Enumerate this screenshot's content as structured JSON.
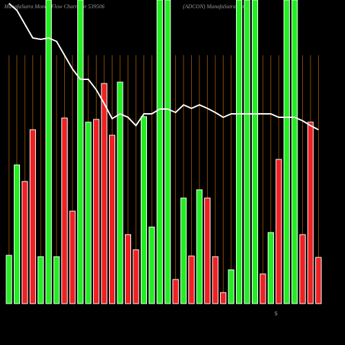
{
  "chart_data": {
    "type": "bar",
    "title": "MunafaSutra Money Flow Charts for 539506",
    "subtitle": "(ADCON) MunafaSutra.com",
    "annotation": "$",
    "ylim": [
      0,
      440
    ],
    "values": [
      70,
      201,
      177,
      252,
      68,
      440,
      68,
      269,
      134,
      440,
      263,
      267,
      319,
      244,
      321,
      100,
      78,
      271,
      111,
      440,
      440,
      35,
      153,
      69,
      165,
      153,
      68,
      16,
      49,
      440,
      440,
      440,
      43,
      103,
      209,
      440,
      440,
      100,
      263,
      67
    ],
    "colors": [
      "#22ee22",
      "#22ee22",
      "#ee2222",
      "#ee2222",
      "#22ee22",
      "#22ee22",
      "#22ee22",
      "#ee2222",
      "#ee2222",
      "#22ee22",
      "#22ee22",
      "#ee2222",
      "#ee2222",
      "#ee2222",
      "#22ee22",
      "#ee2222",
      "#ee2222",
      "#22ee22",
      "#22ee22",
      "#22ee22",
      "#22ee22",
      "#ee2222",
      "#22ee22",
      "#ee2222",
      "#22ee22",
      "#ee2222",
      "#ee2222",
      "#ee2222",
      "#22ee22",
      "#22ee22",
      "#22ee22",
      "#22ee22",
      "#ee2222",
      "#22ee22",
      "#ee2222",
      "#22ee22",
      "#22ee22",
      "#ee2222",
      "#ee2222",
      "#ee2222"
    ],
    "line": {
      "color": "#ffffff",
      "values": [
        435,
        425,
        405,
        385,
        383,
        385,
        380,
        360,
        340,
        325,
        325,
        310,
        290,
        268,
        275,
        270,
        258,
        275,
        275,
        282,
        282,
        277,
        288,
        283,
        288,
        283,
        277,
        270,
        275,
        275,
        275,
        275,
        275,
        275,
        270,
        270,
        270,
        265,
        258,
        252
      ]
    },
    "gridline_color": "#8a4a00"
  }
}
